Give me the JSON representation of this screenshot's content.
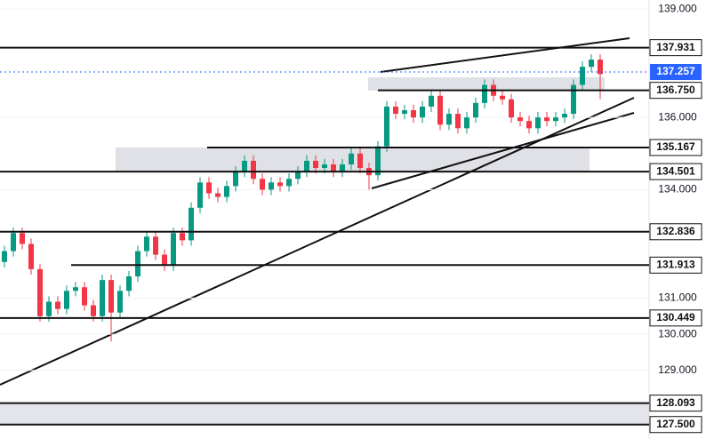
{
  "chart_data": {
    "type": "candlestick",
    "ylim": [
      127.1,
      139.25
    ],
    "yticks": [
      {
        "value": 139,
        "label": "139.000"
      },
      {
        "value": 136,
        "label": "136.000"
      },
      {
        "value": 134,
        "label": "134.000"
      },
      {
        "value": 131,
        "label": "131.000"
      },
      {
        "value": 130,
        "label": "130.000"
      },
      {
        "value": 129,
        "label": "129.000"
      }
    ],
    "up_color": "#089981",
    "down_color": "#f23645",
    "current_price": 137.257,
    "current_color": "#2962ff",
    "levels": [
      137.931,
      {
        "value": 136.75,
        "label": "136.750"
      },
      135.167,
      134.501,
      132.836,
      131.913,
      130.449,
      128.093,
      {
        "value": 127.5,
        "label": "127.500"
      }
    ],
    "open": [
      132.0,
      132.3,
      132.8,
      132.5,
      131.8,
      130.5,
      130.9,
      130.7,
      131.2,
      131.3,
      130.8,
      130.5,
      131.5,
      130.6,
      131.2,
      131.6,
      132.3,
      132.7,
      132.2,
      131.9,
      132.8,
      132.6,
      133.5,
      134.2,
      133.9,
      133.8,
      134.1,
      134.5,
      134.8,
      134.3,
      134.0,
      134.2,
      134.1,
      134.3,
      134.5,
      134.8,
      134.6,
      134.7,
      134.5,
      134.7,
      135.0,
      134.6,
      134.4,
      135.2,
      136.3,
      136.1,
      136.2,
      136.0,
      136.3,
      136.6,
      135.8,
      136.1,
      135.7,
      136.0,
      136.4,
      136.9,
      136.6,
      136.5,
      136.0,
      135.9,
      135.7,
      136.0,
      135.9,
      136.0,
      136.1,
      136.9,
      137.4,
      137.6
    ],
    "high": [
      132.45,
      132.95,
      132.95,
      132.65,
      131.95,
      131.05,
      131.05,
      131.35,
      131.45,
      131.45,
      130.95,
      131.65,
      131.65,
      131.35,
      131.75,
      132.45,
      132.85,
      132.85,
      132.35,
      132.95,
      132.95,
      133.65,
      134.35,
      134.35,
      134.05,
      134.25,
      134.65,
      134.95,
      134.95,
      134.45,
      134.35,
      134.35,
      134.45,
      134.65,
      134.95,
      134.95,
      134.85,
      134.85,
      134.85,
      135.15,
      135.15,
      134.75,
      135.35,
      136.45,
      136.45,
      136.35,
      136.35,
      136.45,
      136.75,
      136.75,
      136.25,
      136.25,
      136.15,
      136.55,
      137.05,
      137.05,
      136.75,
      136.65,
      136.15,
      136.05,
      136.15,
      136.15,
      136.15,
      136.25,
      137.05,
      137.55,
      137.75,
      137.75
    ],
    "low": [
      131.85,
      132.15,
      132.35,
      131.65,
      130.35,
      130.35,
      130.55,
      130.55,
      131.05,
      130.65,
      130.35,
      130.35,
      129.8,
      130.45,
      131.05,
      131.45,
      132.15,
      132.05,
      131.75,
      131.75,
      132.45,
      132.45,
      133.35,
      133.75,
      133.65,
      133.65,
      133.95,
      134.35,
      134.15,
      133.85,
      133.85,
      133.95,
      133.95,
      134.15,
      134.35,
      134.45,
      134.45,
      134.35,
      134.35,
      134.55,
      134.45,
      134.0,
      134.25,
      135.05,
      135.95,
      135.95,
      135.85,
      135.85,
      136.15,
      135.65,
      135.65,
      135.55,
      135.55,
      135.85,
      136.25,
      136.45,
      136.35,
      135.85,
      135.75,
      135.55,
      135.55,
      135.75,
      135.75,
      135.85,
      135.95,
      136.75,
      137.25,
      136.5
    ],
    "close": [
      132.3,
      132.8,
      132.5,
      131.8,
      130.5,
      130.9,
      130.7,
      131.2,
      131.3,
      130.8,
      130.5,
      131.5,
      130.6,
      131.2,
      131.6,
      132.3,
      132.7,
      132.2,
      131.9,
      132.8,
      132.6,
      133.5,
      134.2,
      133.9,
      133.8,
      134.1,
      134.5,
      134.8,
      134.3,
      134.0,
      134.2,
      134.1,
      134.3,
      134.5,
      134.8,
      134.6,
      134.7,
      134.5,
      134.7,
      135.0,
      134.6,
      134.4,
      135.2,
      136.3,
      136.1,
      136.2,
      136.0,
      136.3,
      136.6,
      135.8,
      136.1,
      135.7,
      136.0,
      136.4,
      136.9,
      136.6,
      136.5,
      136.0,
      135.9,
      135.7,
      136.0,
      135.9,
      136.0,
      136.1,
      136.9,
      137.4,
      137.6,
      137.2
    ]
  }
}
